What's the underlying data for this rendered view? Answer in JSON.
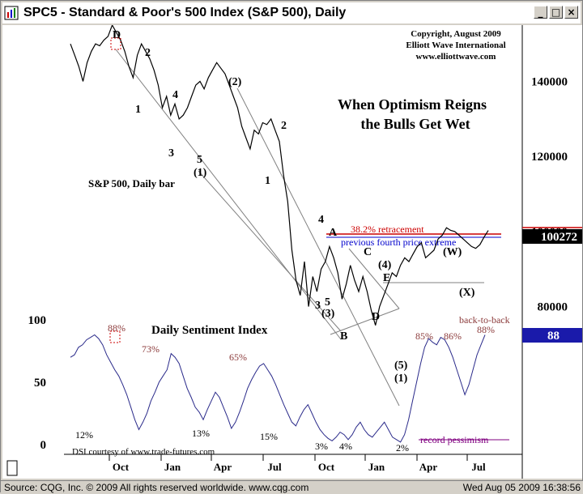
{
  "window": {
    "title": "SPC5 - Standard & Poor's 500 Index (S&P 500), Daily",
    "minimize_glyph": "_",
    "maximize_glyph": "□",
    "close_glyph": "×"
  },
  "copyright": [
    "Copyright, August 2009",
    "Elliott Wave International",
    "www.elliottwave.com"
  ],
  "headline": [
    "When Optimism Reigns",
    "the Bulls Get Wet"
  ],
  "price_label": "S&P 500, Daily bar",
  "sentiment_label": "Daily Sentiment Index",
  "dsi_credit": "DSI courtesy of  www.trade-futures.com",
  "annotations": {
    "retracement": "38.2% retracement",
    "fourth_extreme": "previous fourth price extreme",
    "record_pessimism": "record pessimism",
    "back_to_back": "back-to-back"
  },
  "last_price": "100272",
  "last_dsi": "88",
  "colors": {
    "price": "#000000",
    "dsi": "#2a2a8a",
    "retrace": "#cc0000",
    "fourth": "#0000cc",
    "sent_label": "#8b3a3a",
    "pessimism": "#800080"
  },
  "chart_data": [
    {
      "type": "line",
      "name": "S&P 500, Daily bar",
      "x_ticks": [
        "Oct",
        "Jan",
        "Apr",
        "Jul",
        "Oct",
        "Jan",
        "Apr",
        "Jul"
      ],
      "y_ticks": [
        80000,
        100000,
        120000,
        140000
      ],
      "ylim": [
        73000,
        155000
      ],
      "x": [
        0,
        6,
        10,
        14,
        18,
        22,
        26,
        30,
        34,
        38,
        42,
        46,
        50,
        54,
        58,
        62,
        66,
        70,
        74,
        78,
        82,
        86,
        90,
        94,
        98,
        102,
        106,
        110,
        114,
        118,
        122,
        126,
        130,
        134,
        138,
        142,
        146,
        150,
        154,
        158,
        162,
        166,
        170,
        174,
        178,
        182,
        186,
        190,
        194,
        198,
        202,
        206,
        210,
        214,
        218,
        222,
        226,
        230,
        234,
        238,
        242,
        246,
        250,
        254,
        258,
        262,
        266,
        270,
        274,
        278,
        282,
        286,
        290,
        294,
        298,
        302,
        306,
        310,
        314,
        318,
        322,
        326,
        330,
        334,
        338,
        342,
        346,
        350,
        354,
        358,
        362,
        366,
        370,
        374,
        378,
        382,
        386,
        390,
        394,
        398,
        402,
        406,
        410,
        414,
        418,
        422,
        426,
        430,
        434,
        438,
        442,
        446,
        450,
        454,
        458,
        462,
        466,
        470,
        474,
        478,
        482,
        486,
        490,
        494,
        498,
        502,
        506,
        510,
        514,
        518,
        522,
        526,
        530
      ],
      "values": [
        150000,
        147000,
        144000,
        140000,
        145000,
        148000,
        150000,
        149500,
        151000,
        152000,
        155000,
        153000,
        151000,
        148000,
        144000,
        141000,
        147000,
        150000,
        148000,
        146000,
        143000,
        139000,
        133000,
        136000,
        131000,
        134000,
        130000,
        131000,
        133000,
        136000,
        139000,
        140000,
        138000,
        141000,
        143000,
        145000,
        143500,
        142000,
        139000,
        136000,
        133000,
        128000,
        125000,
        122000,
        127000,
        126000,
        129000,
        128500,
        130000,
        127000,
        124000,
        115000,
        108000,
        95000,
        87000,
        83000,
        92000,
        80000,
        88000,
        84000,
        90000,
        92000,
        96000,
        93000,
        89000,
        82000,
        86000,
        91000,
        87000,
        84000,
        88000,
        84000,
        79000,
        75000,
        80000,
        83000,
        86000,
        89000,
        88000,
        91000,
        93000,
        92000,
        94000,
        96000,
        97000,
        93000,
        94000,
        95000,
        98000,
        99000,
        101000,
        100300,
        100000,
        99000,
        98000,
        97000,
        96000,
        95500,
        96500,
        98500,
        100272,
        100272,
        100272,
        100272,
        100272,
        100272,
        100272,
        100272,
        100272,
        100272,
        100272,
        100272,
        100272,
        100272,
        100272,
        100272,
        100272,
        100272,
        100272,
        100272,
        100272,
        100272,
        100272,
        100272,
        100272,
        100272,
        100272,
        100272,
        100272,
        100272,
        100272,
        100272,
        100272
      ]
    },
    {
      "type": "line",
      "name": "Daily Sentiment Index",
      "y_ticks": [
        0,
        50,
        100
      ],
      "ylim": [
        0,
        100
      ],
      "values": [
        70,
        72,
        78,
        80,
        84,
        86,
        88,
        85,
        80,
        72,
        66,
        60,
        55,
        48,
        40,
        30,
        20,
        12,
        18,
        25,
        35,
        42,
        50,
        55,
        60,
        73,
        70,
        65,
        55,
        45,
        38,
        30,
        26,
        20,
        28,
        35,
        42,
        38,
        30,
        22,
        13,
        18,
        26,
        35,
        45,
        52,
        58,
        63,
        65,
        60,
        55,
        48,
        40,
        32,
        25,
        18,
        15,
        22,
        28,
        32,
        25,
        18,
        12,
        8,
        5,
        3,
        6,
        10,
        8,
        4,
        8,
        14,
        18,
        12,
        8,
        6,
        10,
        14,
        18,
        12,
        6,
        4,
        2,
        8,
        20,
        35,
        50,
        65,
        78,
        85,
        82,
        80,
        86,
        84,
        78,
        70,
        60,
        50,
        40,
        48,
        60,
        72,
        80,
        88
      ]
    }
  ],
  "labels": {
    "tick_D": "D",
    "p2": "2",
    "p1": "1",
    "p4": "4",
    "p3": "3",
    "p5": "5",
    "circ2": "(2)",
    "lbl_1b": "(1)",
    "mid2": "2",
    "mid1": "1",
    "lblA": "A",
    "lblB": "B",
    "lblC": "C",
    "lblD": "D",
    "lblE": "E",
    "lbl3": "3",
    "lbl5": "5",
    "lbl_3c": "(3)",
    "lbl_4c": "(4)",
    "lbl_4": "4",
    "lbl_5c": "(5)",
    "lbl_1c": "(1)",
    "lbl_W": "(W)",
    "lbl_X": "(X)",
    "s88": "88%",
    "s73": "73%",
    "s65": "65%",
    "s12": "12%",
    "s13": "13%",
    "s15": "15%",
    "s3": "3%",
    "s4": "4%",
    "s2": "2%",
    "s85": "85%",
    "s86": "86%",
    "s88b": "88%"
  },
  "status": {
    "source": "Source: CQG, Inc. © 2009 All rights reserved worldwide.  www.cqg.com",
    "timestamp": "Wed Aug 05 2009 16:38:56"
  }
}
